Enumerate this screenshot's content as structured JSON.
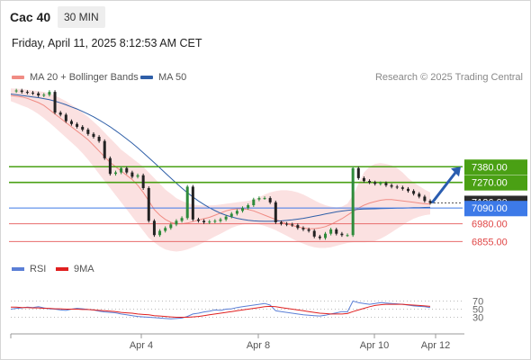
{
  "header": {
    "instrument": "Cac 40",
    "timeframe": "30 MIN",
    "timestamp": "Friday, April 11, 2025 8:12:53 AM CET"
  },
  "legend": {
    "ma20": {
      "label": "MA 20 + Bollinger Bands",
      "color": "#f08c84"
    },
    "ma50": {
      "label": "MA 50",
      "color": "#2f5fa8"
    }
  },
  "credit": "Research © 2025 Trading Central",
  "rsi_legend": {
    "rsi": {
      "label": "RSI",
      "color": "#5b7fd6"
    },
    "ma9": {
      "label": "9MA",
      "color": "#e02020"
    }
  },
  "chart_data": [
    {
      "type": "candlestick",
      "title": "Cac 40",
      "x_tick_labels": [
        "Apr 4",
        "Apr 8",
        "Apr 10",
        "Apr 12"
      ],
      "levels": [
        {
          "label": "7380.00",
          "value": 7380,
          "color": "#4aa014",
          "kind": "resistance"
        },
        {
          "label": "7270.00",
          "value": 7270,
          "color": "#4aa014",
          "kind": "resistance"
        },
        {
          "label": "7090.00",
          "value": 7090,
          "color": "#3d7ae8",
          "kind": "pivot"
        },
        {
          "label": "6980.00",
          "value": 6980,
          "color": "#e86c6c",
          "kind": "support"
        },
        {
          "label": "6855.00",
          "value": 6855,
          "color": "#e86c6c",
          "kind": "support"
        }
      ],
      "current_price": {
        "label": "7126.00",
        "value": 7126,
        "color": "#2b2b2b"
      },
      "ylim": [
        6750,
        7950
      ],
      "price_path": [
        7910,
        7915,
        7905,
        7900,
        7895,
        7880,
        7885,
        7905,
        7760,
        7745,
        7700,
        7680,
        7660,
        7640,
        7610,
        7590,
        7560,
        7440,
        7330,
        7340,
        7370,
        7340,
        7310,
        7320,
        7230,
        7000,
        6900,
        6930,
        6950,
        6975,
        7000,
        7020,
        7240,
        7010,
        7000,
        6990,
        6995,
        7000,
        7010,
        7030,
        7050,
        7070,
        7090,
        7110,
        7150,
        7160,
        7160,
        7130,
        6990,
        6980,
        6975,
        6970,
        6950,
        6940,
        6930,
        6890,
        6880,
        6910,
        6940,
        6910,
        6900,
        6900,
        7370,
        7300,
        7280,
        7270,
        7260,
        7265,
        7250,
        7240,
        7235,
        7225,
        7210,
        7190,
        7170,
        7140,
        7126
      ],
      "ma20": [
        7880,
        7875,
        7870,
        7860,
        7845,
        7830,
        7810,
        7780,
        7750,
        7720,
        7690,
        7660,
        7630,
        7600,
        7570,
        7530,
        7490,
        7450,
        7410,
        7380,
        7350,
        7320,
        7290,
        7250,
        7200,
        7140,
        7080,
        7040,
        7010,
        6990,
        6980,
        6980,
        6985,
        6995,
        7005,
        7015,
        7025,
        7040,
        7055,
        7070,
        7080,
        7085,
        7085,
        7080,
        7070,
        7055,
        7040,
        7025,
        7010,
        6995,
        6980,
        6968,
        6958,
        6950,
        6945,
        6945,
        6950,
        6960,
        6975,
        6995,
        7015,
        7040,
        7065,
        7090,
        7110,
        7125,
        7135,
        7145,
        7150,
        7150,
        7145,
        7140,
        7135,
        7130,
        7125,
        7120,
        7118
      ],
      "ma50": [
        7890,
        7885,
        7880,
        7875,
        7870,
        7865,
        7858,
        7850,
        7840,
        7828,
        7815,
        7800,
        7785,
        7768,
        7750,
        7730,
        7708,
        7685,
        7660,
        7633,
        7605,
        7575,
        7545,
        7512,
        7478,
        7443,
        7408,
        7372,
        7336,
        7300,
        7265,
        7230,
        7198,
        7168,
        7140,
        7115,
        7092,
        7072,
        7054,
        7040,
        7028,
        7018,
        7010,
        7004,
        7000,
        6998,
        6997,
        6997,
        6998,
        7000,
        7003,
        7007,
        7012,
        7018,
        7025,
        7032,
        7040,
        7048,
        7056,
        7063,
        7069,
        7074,
        7078,
        7081,
        7083,
        7084,
        7085,
        7086,
        7087,
        7088,
        7089,
        7090,
        7091,
        7092,
        7093,
        7094,
        7095
      ],
      "bollinger_upper": [
        7930,
        7928,
        7925,
        7920,
        7915,
        7910,
        7905,
        7895,
        7880,
        7860,
        7840,
        7815,
        7790,
        7760,
        7730,
        7695,
        7660,
        7620,
        7580,
        7540,
        7500,
        7470,
        7440,
        7410,
        7380,
        7340,
        7300,
        7260,
        7220,
        7190,
        7160,
        7140,
        7125,
        7115,
        7110,
        7108,
        7108,
        7110,
        7115,
        7120,
        7125,
        7130,
        7135,
        7140,
        7150,
        7165,
        7185,
        7200,
        7210,
        7215,
        7215,
        7210,
        7200,
        7185,
        7165,
        7145,
        7125,
        7110,
        7100,
        7095,
        7100,
        7120,
        7180,
        7260,
        7340,
        7380,
        7400,
        7405,
        7400,
        7390,
        7370,
        7340,
        7300,
        7270,
        7245,
        7220,
        7200
      ],
      "bollinger_lower": [
        7840,
        7825,
        7810,
        7795,
        7775,
        7750,
        7720,
        7690,
        7655,
        7620,
        7585,
        7550,
        7515,
        7475,
        7430,
        7380,
        7330,
        7280,
        7230,
        7180,
        7130,
        7080,
        7030,
        6980,
        6930,
        6880,
        6850,
        6820,
        6800,
        6790,
        6785,
        6790,
        6800,
        6815,
        6830,
        6850,
        6870,
        6890,
        6910,
        6930,
        6950,
        6965,
        6975,
        6980,
        6980,
        6975,
        6965,
        6950,
        6935,
        6915,
        6895,
        6875,
        6855,
        6840,
        6825,
        6815,
        6810,
        6810,
        6815,
        6825,
        6835,
        6845,
        6850,
        6850,
        6850,
        6852,
        6860,
        6875,
        6895,
        6920,
        6945,
        6970,
        6995,
        7015,
        7030,
        7040,
        7045
      ],
      "forecast_arrow": {
        "from": 7126,
        "to": 7380
      }
    },
    {
      "type": "line",
      "title": "RSI",
      "ylim": [
        0,
        100
      ],
      "y_ticks": [
        "70",
        "50",
        "30"
      ],
      "series": [
        {
          "name": "RSI",
          "values": [
            50,
            52,
            53,
            55,
            54,
            56,
            53,
            51,
            50,
            48,
            47,
            50,
            52,
            51,
            49,
            48,
            45,
            43,
            42,
            41,
            38,
            36,
            34,
            32,
            31,
            30,
            29,
            28,
            27,
            26,
            27,
            28,
            32,
            38,
            40,
            43,
            45,
            48,
            47,
            50,
            51,
            54,
            56,
            58,
            60,
            62,
            64,
            60,
            46,
            44,
            42,
            40,
            38,
            36,
            35,
            34,
            33,
            35,
            38,
            41,
            44,
            43,
            70,
            66,
            64,
            62,
            64,
            66,
            65,
            64,
            63,
            62,
            60,
            58,
            57,
            56,
            54
          ]
        },
        {
          "name": "9MA",
          "values": [
            55,
            55,
            54,
            54,
            53,
            53,
            52,
            52,
            51,
            51,
            50,
            50,
            50,
            49,
            49,
            48,
            47,
            46,
            45,
            44,
            42,
            41,
            40,
            38,
            37,
            36,
            34,
            33,
            32,
            31,
            30,
            30,
            30,
            31,
            32,
            34,
            36,
            38,
            40,
            42,
            44,
            46,
            48,
            50,
            52,
            54,
            56,
            57,
            56,
            54,
            52,
            50,
            48,
            46,
            44,
            42,
            40,
            39,
            38,
            38,
            38,
            39,
            44,
            48,
            52,
            56,
            59,
            61,
            62,
            62,
            62,
            62,
            61,
            60,
            59,
            58,
            57
          ]
        }
      ]
    }
  ]
}
